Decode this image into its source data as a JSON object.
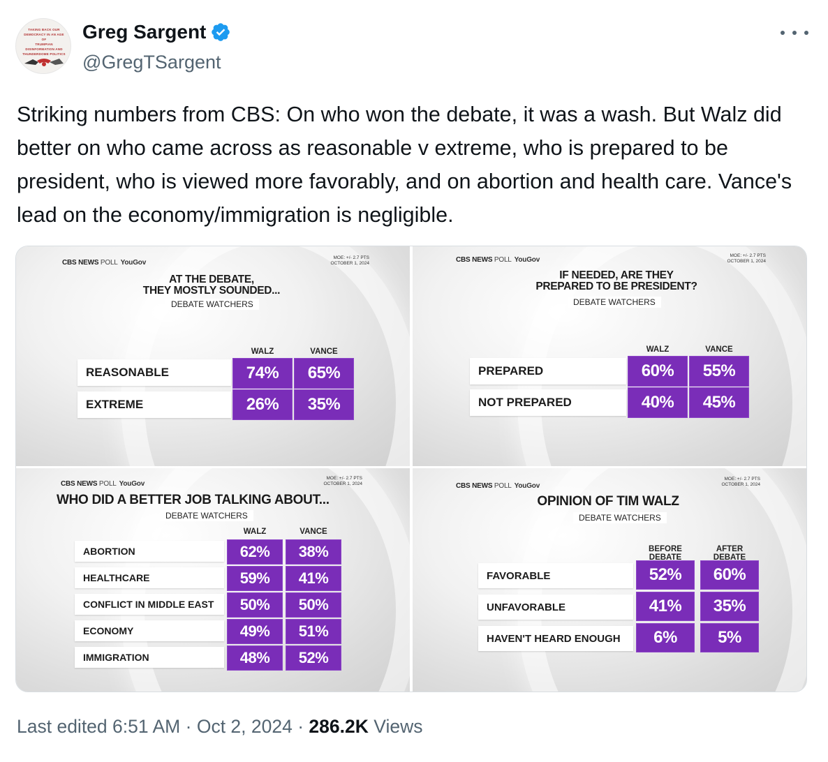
{
  "author": {
    "display_name": "Greg Sargent",
    "handle": "@GregTSargent",
    "avatar_text": [
      "TAKING BACK OUR",
      "DEMOCRACY IN AN AGE OF",
      "TRUMPIAN DISINFORMATION AND",
      "THUNDERDOME POLITICS"
    ]
  },
  "tweet": {
    "text": "Striking numbers from CBS: On who won the debate, it was a wash. But Walz did better on who came across as reasonable v extreme, who is prepared to be president, who is viewed more favorably, and on abortion and health care. Vance's lead on the economy/immigration is negligible."
  },
  "colors": {
    "accent": "#7a2db8",
    "text": "#0f1419",
    "muted": "#536471",
    "verified": "#1d9bf0"
  },
  "panels": [
    {
      "brand": "CBS NEWS",
      "poll": "POLL",
      "yougov": "YouGov",
      "moe": [
        "MOE: +/- 2.7 PTS",
        "OCTOBER 1, 2024"
      ],
      "title": [
        "AT THE DEBATE,",
        "THEY MOSTLY SOUNDED..."
      ],
      "subtitle": "DEBATE WATCHERS",
      "columns": [
        "WALZ",
        "VANCE"
      ],
      "rows": [
        {
          "label": "REASONABLE",
          "values": [
            "74%",
            "65%"
          ]
        },
        {
          "label": "EXTREME",
          "values": [
            "26%",
            "35%"
          ]
        }
      ]
    },
    {
      "brand": "CBS NEWS",
      "poll": "POLL",
      "yougov": "YouGov",
      "moe": [
        "MOE: +/- 2.7 PTS",
        "OCTOBER 1, 2024"
      ],
      "title": [
        "IF NEEDED, ARE THEY",
        "PREPARED TO BE PRESIDENT?"
      ],
      "subtitle": "DEBATE WATCHERS",
      "columns": [
        "WALZ",
        "VANCE"
      ],
      "rows": [
        {
          "label": "PREPARED",
          "values": [
            "60%",
            "55%"
          ]
        },
        {
          "label": "NOT PREPARED",
          "values": [
            "40%",
            "45%"
          ]
        }
      ]
    },
    {
      "brand": "CBS NEWS",
      "poll": "POLL",
      "yougov": "YouGov",
      "moe": [
        "MOE: +/- 2.7 PTS",
        "OCTOBER 1, 2024"
      ],
      "title": [
        "WHO DID A BETTER JOB TALKING ABOUT..."
      ],
      "subtitle": "DEBATE WATCHERS",
      "columns": [
        "WALZ",
        "VANCE"
      ],
      "rows": [
        {
          "label": "ABORTION",
          "values": [
            "62%",
            "38%"
          ]
        },
        {
          "label": "HEALTHCARE",
          "values": [
            "59%",
            "41%"
          ]
        },
        {
          "label": "CONFLICT IN MIDDLE EAST",
          "values": [
            "50%",
            "50%"
          ]
        },
        {
          "label": "ECONOMY",
          "values": [
            "49%",
            "51%"
          ]
        },
        {
          "label": "IMMIGRATION",
          "values": [
            "48%",
            "52%"
          ]
        }
      ]
    },
    {
      "brand": "CBS NEWS",
      "poll": "POLL",
      "yougov": "YouGov",
      "moe": [
        "MOE: +/- 2.7 PTS",
        "OCTOBER 1, 2024"
      ],
      "title": [
        "OPINION OF TIM WALZ"
      ],
      "subtitle": "DEBATE WATCHERS",
      "columns": [
        "BEFORE DEBATE",
        "AFTER DEBATE"
      ],
      "rows": [
        {
          "label": "FAVORABLE",
          "values": [
            "52%",
            "60%"
          ]
        },
        {
          "label": "UNFAVORABLE",
          "values": [
            "41%",
            "35%"
          ]
        },
        {
          "label": "HAVEN'T HEARD ENOUGH",
          "values": [
            "6%",
            "5%"
          ]
        }
      ]
    }
  ],
  "footer": {
    "edited": "Last edited 6:51 AM",
    "sep": "·",
    "date": "Oct 2, 2024",
    "views_count": "286.2K",
    "views_label": "Views"
  }
}
